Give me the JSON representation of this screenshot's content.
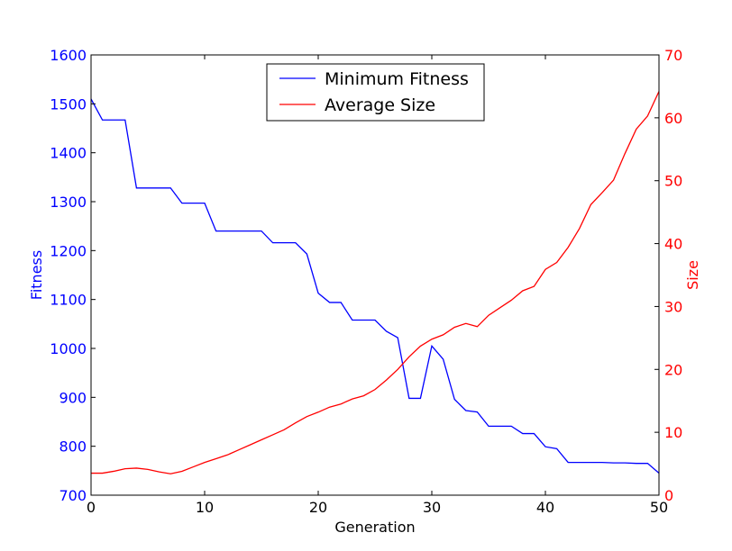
{
  "chart_data": {
    "type": "line",
    "title": "",
    "xlabel": "Generation",
    "ylabel_left": "Fitness",
    "ylabel_right": "Size",
    "xlim": [
      0,
      50
    ],
    "ylim_left": [
      700,
      1600
    ],
    "ylim_right": [
      0,
      70
    ],
    "x_ticks": [
      "0",
      "10",
      "20",
      "30",
      "40",
      "50"
    ],
    "y_left_ticks": [
      "700",
      "800",
      "900",
      "1000",
      "1100",
      "1200",
      "1300",
      "1400",
      "1500",
      "1600"
    ],
    "y_right_ticks": [
      "0",
      "10",
      "20",
      "30",
      "40",
      "50",
      "60",
      "70"
    ],
    "grid": false,
    "legend_position": "upper center",
    "x": [
      0,
      1,
      2,
      3,
      4,
      5,
      6,
      7,
      8,
      9,
      10,
      11,
      12,
      13,
      14,
      15,
      16,
      17,
      18,
      19,
      20,
      21,
      22,
      23,
      24,
      25,
      26,
      27,
      28,
      29,
      30,
      31,
      32,
      33,
      34,
      35,
      36,
      37,
      38,
      39,
      40,
      41,
      42,
      43,
      44,
      45,
      46,
      47,
      48,
      49,
      50
    ],
    "series": [
      {
        "name": "Minimum Fitness",
        "axis": "left",
        "color": "#0000ff",
        "values": [
          1510,
          1467,
          1467,
          1467,
          1328,
          1328,
          1328,
          1328,
          1297,
          1297,
          1297,
          1240,
          1240,
          1240,
          1240,
          1240,
          1216,
          1216,
          1216,
          1193,
          1113,
          1094,
          1094,
          1058,
          1058,
          1058,
          1035,
          1022,
          898,
          898,
          1005,
          978,
          896,
          873,
          870,
          841,
          841,
          841,
          826,
          826,
          799,
          795,
          767,
          767,
          767,
          767,
          766,
          766,
          765,
          765,
          745
        ]
      },
      {
        "name": "Average Size",
        "axis": "right",
        "color": "#ff0000",
        "values": [
          3.5,
          3.5,
          3.8,
          4.2,
          4.3,
          4.1,
          3.7,
          3.4,
          3.8,
          4.5,
          5.2,
          5.8,
          6.4,
          7.2,
          8.0,
          8.8,
          9.6,
          10.4,
          11.5,
          12.5,
          13.2,
          14.0,
          14.5,
          15.3,
          15.8,
          16.8,
          18.3,
          20.0,
          22.0,
          23.7,
          24.8,
          25.5,
          26.7,
          27.3,
          26.8,
          28.6,
          29.8,
          31.0,
          32.5,
          33.2,
          35.9,
          37.0,
          39.4,
          42.4,
          46.2,
          48.1,
          50.1,
          54.3,
          58.2,
          60.3,
          64.2
        ]
      }
    ]
  }
}
